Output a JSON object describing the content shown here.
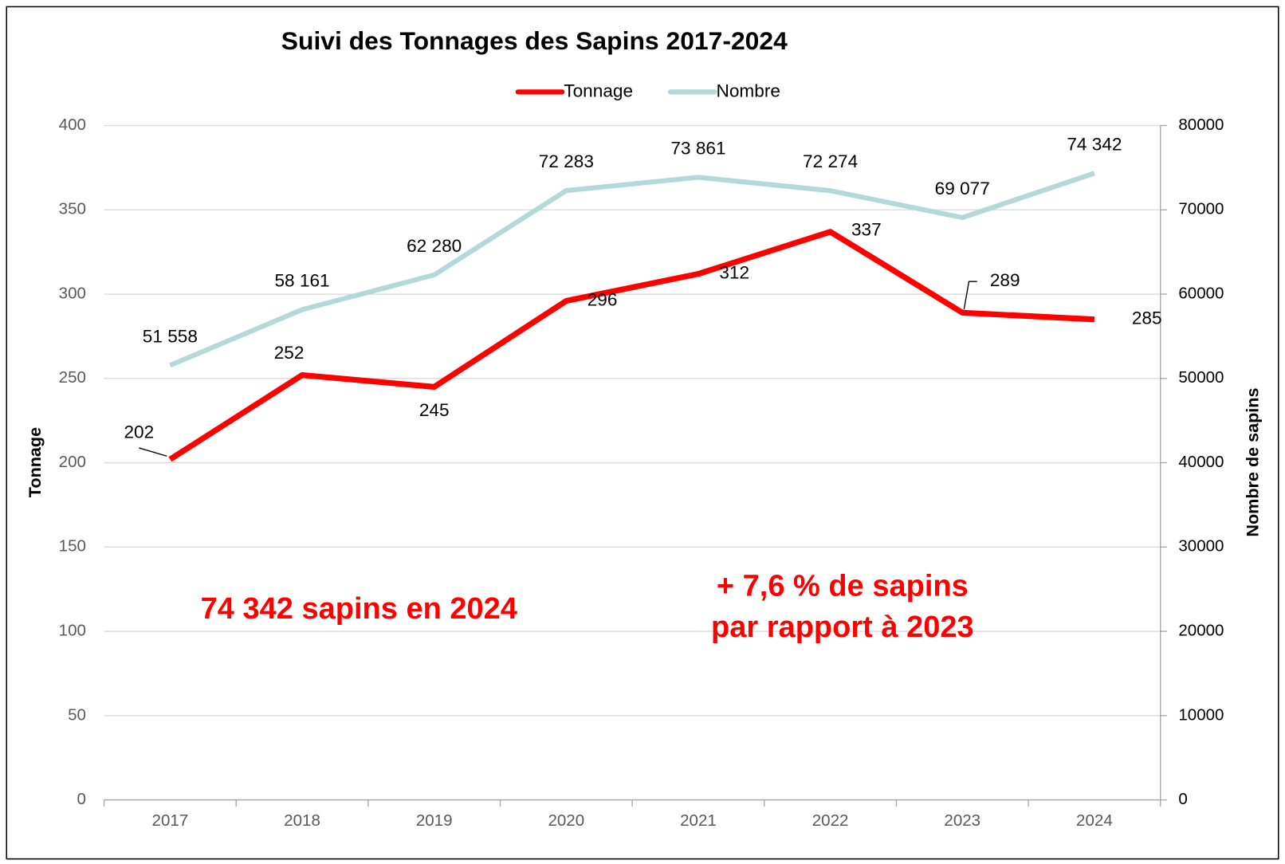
{
  "chart_data": {
    "type": "line",
    "title": "Suivi des Tonnages  des Sapins 2017-2024",
    "categories": [
      "2017",
      "2018",
      "2019",
      "2020",
      "2021",
      "2022",
      "2023",
      "2024"
    ],
    "series": [
      {
        "name": "Tonnage",
        "color": "#ff0000",
        "values": [
          202,
          252,
          245,
          296,
          312,
          337,
          289,
          285
        ]
      },
      {
        "name": "Nombre",
        "color": "#b4d7da",
        "axis": "y2",
        "values": [
          51558,
          58161,
          62280,
          72283,
          73861,
          72274,
          69077,
          74342
        ],
        "value_labels": [
          "51 558",
          "58 161",
          "62 280",
          "72 283",
          "73 861",
          "72 274",
          "69 077",
          "74 342"
        ]
      }
    ],
    "ylabel": "Tonnage",
    "y2label": "Nombre de sapins",
    "ylim": [
      0,
      400
    ],
    "yticks": [
      0,
      50,
      100,
      150,
      200,
      250,
      300,
      350,
      400
    ],
    "y2lim": [
      0,
      80000
    ],
    "y2ticks": [
      0,
      10000,
      20000,
      30000,
      40000,
      50000,
      60000,
      70000,
      80000
    ],
    "grid": true,
    "legend": "top",
    "annotations": [
      [
        "74 342 sapins en 2024"
      ],
      [
        "+ 7,6 % de sapins",
        "par rapport à 2023"
      ]
    ]
  }
}
